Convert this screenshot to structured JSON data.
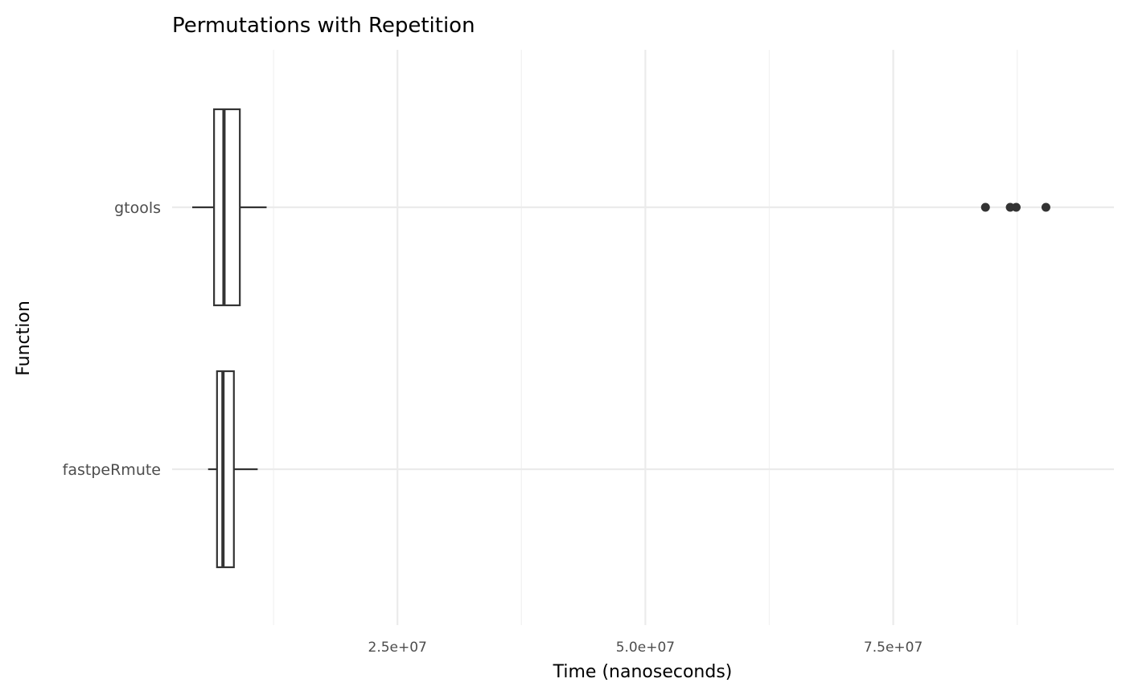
{
  "chart_data": {
    "type": "boxplot",
    "orientation": "horizontal",
    "title": "Permutations with Repetition",
    "xlabel": "Time (nanoseconds)",
    "ylabel": "Function",
    "xlim": [
      0,
      100000000.0
    ],
    "x_major_ticks": [
      25000000,
      50000000,
      75000000
    ],
    "x_tick_labels": [
      "2.5e+07",
      "5.0e+07",
      "7.5e+07"
    ],
    "x_minor_ticks": [
      12500000,
      37500000,
      62500000,
      87500000
    ],
    "grid": true,
    "categories": [
      "gtools",
      "fastpeRmute"
    ],
    "series": [
      {
        "category": "gtools",
        "whisker_low": 4300000,
        "q1": 6500000,
        "median": 7500000,
        "q3": 9100000,
        "whisker_high": 11800000,
        "outliers": [
          84300000,
          86800000,
          87400000,
          90400000
        ]
      },
      {
        "category": "fastpeRmute",
        "whisker_low": 5900000,
        "q1": 6800000,
        "median": 7400000,
        "q3": 8500000,
        "whisker_high": 10900000,
        "outliers": []
      }
    ],
    "colors": {
      "box_stroke": "#333333",
      "box_fill": "#ffffff",
      "grid_major": "#ebebeb",
      "grid_minor": "#f2f2f2",
      "outlier": "#333333"
    }
  }
}
